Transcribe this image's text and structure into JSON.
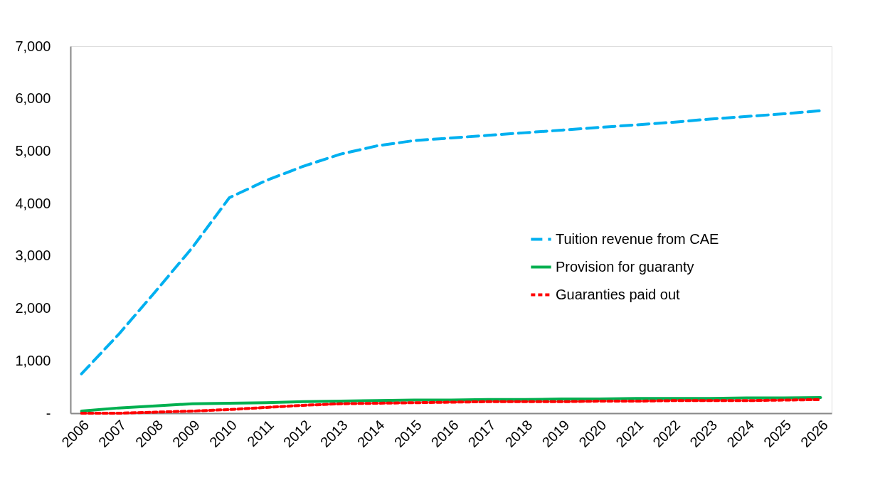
{
  "chart_data": {
    "type": "line",
    "categories": [
      "2006",
      "2007",
      "2008",
      "2009",
      "2010",
      "2011",
      "2012",
      "2013",
      "2014",
      "2015",
      "2016",
      "2017",
      "2018",
      "2019",
      "2020",
      "2021",
      "2022",
      "2023",
      "2024",
      "2025",
      "2026"
    ],
    "series": [
      {
        "name": "Tuition revenue from CAE",
        "color": "#00b0f0",
        "line_style": "dashed",
        "values": [
          750,
          1500,
          2320,
          3160,
          4110,
          4440,
          4710,
          4940,
          5100,
          5200,
          5250,
          5300,
          5350,
          5400,
          5450,
          5500,
          5550,
          5610,
          5660,
          5710,
          5770
        ]
      },
      {
        "name": "Provision for guaranty",
        "color": "#00b050",
        "line_style": "solid",
        "values": [
          40,
          100,
          140,
          180,
          190,
          200,
          220,
          230,
          240,
          250,
          250,
          260,
          260,
          270,
          270,
          280,
          280,
          280,
          290,
          290,
          300
        ]
      },
      {
        "name": "Guaranties paid out",
        "color": "#ff0000",
        "line_style": "dotted",
        "values": [
          0,
          0,
          20,
          40,
          70,
          110,
          150,
          180,
          190,
          200,
          210,
          220,
          220,
          220,
          230,
          230,
          240,
          240,
          240,
          250,
          260
        ]
      }
    ],
    "ylim": [
      0,
      7000
    ],
    "yticks": [
      {
        "value": 0,
        "label": "-"
      },
      {
        "value": 1000,
        "label": "1,000"
      },
      {
        "value": 2000,
        "label": "2,000"
      },
      {
        "value": 3000,
        "label": "3,000"
      },
      {
        "value": 4000,
        "label": "4,000"
      },
      {
        "value": 5000,
        "label": "5,000"
      },
      {
        "value": 6000,
        "label": "6,000"
      },
      {
        "value": 7000,
        "label": "7,000"
      }
    ],
    "grid": false,
    "legend": "right",
    "marker": "none"
  }
}
